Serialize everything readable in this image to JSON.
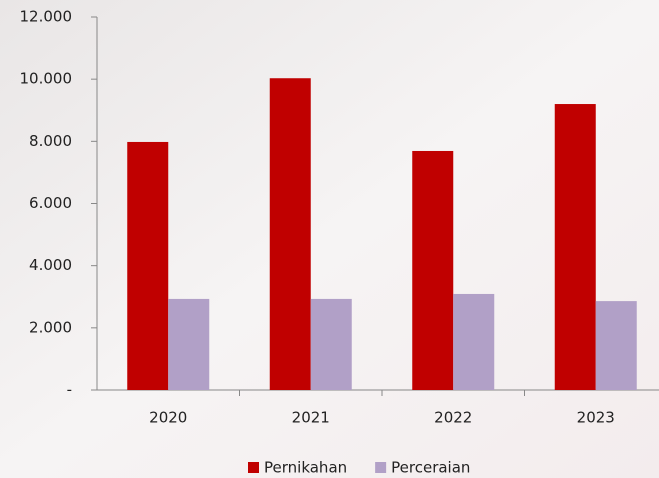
{
  "chart_data": {
    "type": "bar",
    "categories": [
      "2020",
      "2021",
      "2022",
      "2023"
    ],
    "series": [
      {
        "name": "Pernikahan",
        "color": "#c00000",
        "values": [
          7980,
          10030,
          7690,
          9200
        ]
      },
      {
        "name": "Perceraian",
        "color": "#b1a0c7",
        "values": [
          2930,
          2930,
          3090,
          2860
        ]
      }
    ],
    "ylim": [
      0,
      12000
    ],
    "yticks": [
      {
        "value": 0,
        "label": "-"
      },
      {
        "value": 2000,
        "label": "2.000"
      },
      {
        "value": 4000,
        "label": "4.000"
      },
      {
        "value": 6000,
        "label": "6.000"
      },
      {
        "value": 8000,
        "label": "8.000"
      },
      {
        "value": 10000,
        "label": "10.000"
      },
      {
        "value": 12000,
        "label": "12.000"
      }
    ],
    "legend": "bottom"
  }
}
